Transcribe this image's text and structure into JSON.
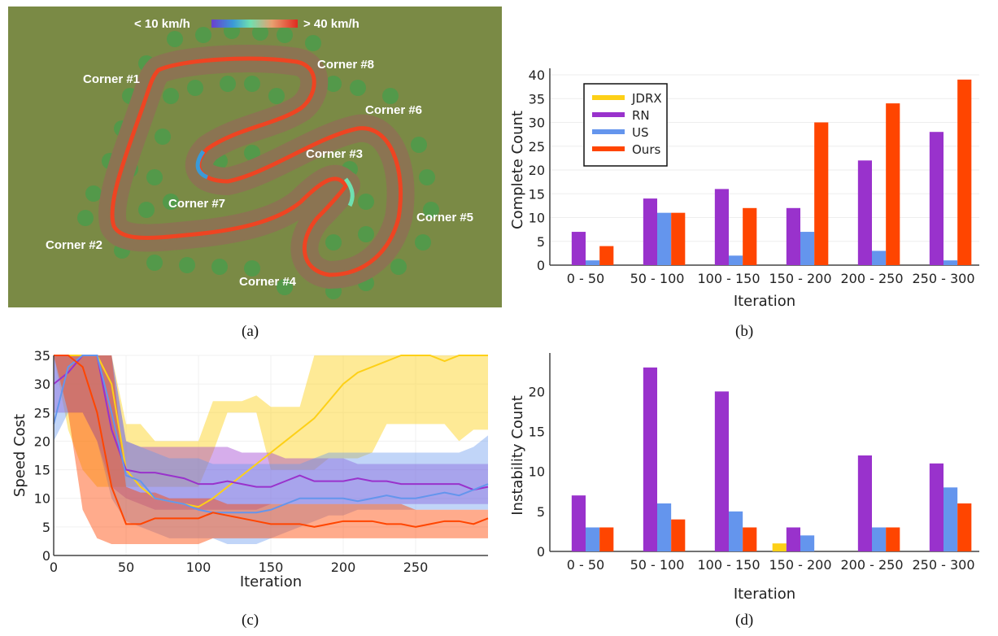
{
  "captions": {
    "a": "(a)",
    "b": "(b)",
    "c": "(c)",
    "d": "(d)"
  },
  "track_map": {
    "colorbar_low": "< 10 km/h",
    "colorbar_high": "> 40 km/h",
    "corners": [
      "Corner #1",
      "Corner #2",
      "Corner #3",
      "Corner #4",
      "Corner #5",
      "Corner #6",
      "Corner #7",
      "Corner #8"
    ],
    "colors": {
      "grass": "#7a8a45",
      "track": "#8b7452",
      "tree": "#4f9a4a",
      "racing_line": "#ee4422"
    }
  },
  "series_colors": {
    "JDRX": "#fdd017",
    "RN": "#9932cc",
    "US": "#6495ed",
    "Ours": "#ff4500"
  },
  "chart_data": [
    {
      "id": "b",
      "type": "bar",
      "title": "",
      "xlabel": "Iteration",
      "ylabel": "Complete Count",
      "categories": [
        "0 - 50",
        "50 - 100",
        "100 - 150",
        "150 - 200",
        "200 - 250",
        "250 - 300"
      ],
      "ylim": [
        0,
        40
      ],
      "yticks": [
        0,
        5,
        10,
        15,
        20,
        25,
        30,
        35,
        40
      ],
      "legend": "top-left",
      "grid": true,
      "series": [
        {
          "name": "JDRX",
          "values": [
            0,
            0,
            0,
            0,
            0,
            0
          ]
        },
        {
          "name": "RN",
          "values": [
            7,
            14,
            16,
            12,
            22,
            28
          ]
        },
        {
          "name": "US",
          "values": [
            1,
            11,
            2,
            7,
            3,
            1
          ]
        },
        {
          "name": "Ours",
          "values": [
            4,
            11,
            12,
            30,
            34,
            39
          ]
        }
      ]
    },
    {
      "id": "c",
      "type": "line",
      "title": "",
      "xlabel": "Iteration",
      "ylabel": "Speed Cost",
      "xlim": [
        0,
        300
      ],
      "ylim": [
        0,
        35
      ],
      "xticks": [
        0,
        50,
        100,
        150,
        200,
        250
      ],
      "yticks": [
        0,
        5,
        10,
        15,
        20,
        25,
        30,
        35
      ],
      "grid": true,
      "x": [
        0,
        10,
        20,
        30,
        40,
        50,
        60,
        70,
        80,
        90,
        100,
        110,
        120,
        130,
        140,
        150,
        160,
        170,
        180,
        190,
        200,
        210,
        220,
        230,
        240,
        250,
        260,
        270,
        280,
        290,
        300
      ],
      "series": [
        {
          "name": "JDRX",
          "values": [
            35,
            35,
            35,
            35,
            30,
            15,
            12,
            10,
            9.5,
            9,
            8.5,
            10,
            12,
            14,
            16,
            18,
            20,
            22,
            24,
            27,
            30,
            32,
            33,
            34,
            35,
            35,
            35,
            34,
            35,
            35,
            35
          ],
          "lower": [
            35,
            22,
            15,
            12,
            12,
            12,
            12,
            12,
            12,
            12,
            12,
            18,
            25,
            25,
            25,
            15,
            15,
            15,
            15,
            17,
            17,
            17,
            18,
            23,
            23,
            23,
            23,
            23,
            20,
            22,
            22
          ],
          "upper": [
            35,
            35,
            35,
            35,
            35,
            23,
            23,
            20,
            20,
            20,
            20,
            27,
            27,
            27,
            28,
            26,
            26,
            26,
            35,
            35,
            35,
            35,
            35,
            35,
            35,
            35,
            35,
            35,
            35,
            35,
            35
          ]
        },
        {
          "name": "RN",
          "values": [
            30,
            32,
            35,
            35,
            22,
            15,
            14.5,
            14.5,
            14,
            13.5,
            12.5,
            12.5,
            13,
            12.5,
            12,
            12,
            13,
            14,
            13,
            13,
            13,
            13.5,
            13,
            13,
            12.5,
            12.5,
            12.5,
            12.5,
            12.5,
            11.5,
            12
          ],
          "lower": [
            25,
            25,
            25,
            20,
            12,
            10,
            9,
            8,
            8,
            8,
            8,
            8,
            8,
            8,
            8,
            9,
            9,
            9,
            9,
            9,
            9,
            9,
            9,
            9,
            9,
            9,
            9,
            9,
            9,
            9,
            9
          ],
          "upper": [
            35,
            35,
            35,
            35,
            35,
            20,
            19,
            19,
            19,
            19,
            19,
            19,
            19,
            18,
            18,
            18,
            17,
            17,
            17,
            17,
            17,
            16,
            16,
            16,
            16,
            16,
            16,
            16,
            16,
            16,
            16
          ]
        },
        {
          "name": "US",
          "values": [
            23,
            33,
            35,
            35,
            25,
            14,
            13,
            10,
            9.5,
            9,
            8,
            7.5,
            7.5,
            7.5,
            7.5,
            8,
            9,
            10,
            10,
            10,
            10,
            9.5,
            10,
            10.5,
            10,
            10,
            10.5,
            11,
            10.5,
            11.5,
            12.5
          ],
          "lower": [
            20,
            25,
            25,
            20,
            10,
            6,
            5,
            4,
            3,
            3,
            3,
            3,
            2,
            2,
            2,
            3,
            4,
            5,
            6,
            7,
            7,
            8,
            8,
            8,
            8,
            8,
            8,
            8,
            8,
            8,
            8
          ],
          "upper": [
            35,
            35,
            35,
            35,
            35,
            20,
            19,
            18,
            17,
            17,
            17,
            16,
            16,
            16,
            16,
            16,
            16,
            16,
            17,
            18,
            18,
            18,
            18,
            18,
            18,
            18,
            18,
            18,
            18,
            19,
            21
          ]
        },
        {
          "name": "Ours",
          "values": [
            35,
            35,
            33,
            25,
            12,
            5.5,
            5.5,
            6.5,
            6.5,
            6.5,
            6.5,
            7.5,
            7,
            6.5,
            6,
            5.5,
            5.5,
            5.5,
            5,
            5.5,
            6,
            6,
            6,
            5.5,
            5.5,
            5,
            5.5,
            6,
            6,
            5.5,
            6.5
          ],
          "lower": [
            35,
            25,
            8,
            3,
            2,
            2,
            2,
            2,
            2,
            2,
            2,
            3,
            3,
            3,
            3,
            3,
            3,
            3,
            3,
            3,
            3,
            3,
            3,
            3,
            3,
            3,
            3,
            3,
            3,
            3,
            3
          ],
          "upper": [
            35,
            35,
            35,
            35,
            35,
            12,
            11,
            11,
            10,
            10,
            10,
            10,
            9,
            9,
            9,
            9,
            9,
            9,
            9,
            9,
            9,
            9,
            9,
            9,
            9,
            8,
            8,
            8,
            8,
            8,
            8
          ]
        }
      ]
    },
    {
      "id": "d",
      "type": "bar",
      "title": "",
      "xlabel": "Iteration",
      "ylabel": "Instability Count",
      "categories": [
        "0 - 50",
        "50 - 100",
        "100 - 150",
        "150 - 200",
        "200 - 250",
        "250 - 300"
      ],
      "ylim": [
        0,
        24
      ],
      "yticks": [
        0,
        5,
        10,
        15,
        20
      ],
      "grid": false,
      "series": [
        {
          "name": "JDRX",
          "values": [
            0,
            0,
            0,
            1,
            0,
            0
          ]
        },
        {
          "name": "RN",
          "values": [
            7,
            23,
            20,
            3,
            12,
            11
          ]
        },
        {
          "name": "US",
          "values": [
            3,
            6,
            5,
            2,
            3,
            8
          ]
        },
        {
          "name": "Ours",
          "values": [
            3,
            4,
            3,
            0,
            3,
            6
          ]
        }
      ]
    }
  ]
}
